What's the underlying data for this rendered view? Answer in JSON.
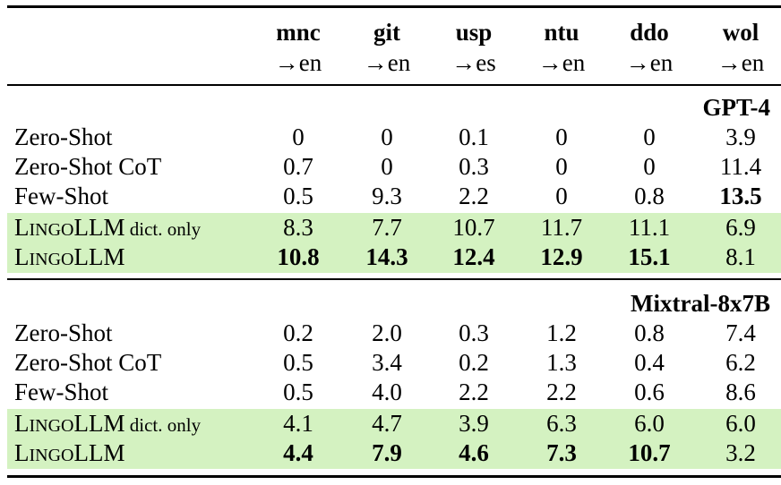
{
  "columns": [
    {
      "name": "mnc",
      "dir": "→en"
    },
    {
      "name": "git",
      "dir": "→en"
    },
    {
      "name": "usp",
      "dir": "→es"
    },
    {
      "name": "ntu",
      "dir": "→en"
    },
    {
      "name": "ddo",
      "dir": "→en"
    },
    {
      "name": "wol",
      "dir": "→en"
    }
  ],
  "sections": [
    {
      "model": "GPT-4",
      "rows": [
        {
          "label": "Zero-Shot",
          "values": [
            "0",
            "0",
            "0.1",
            "0",
            "0",
            "3.9"
          ]
        },
        {
          "label": "Zero-Shot CoT",
          "values": [
            "0.7",
            "0",
            "0.3",
            "0",
            "0",
            "11.4"
          ]
        },
        {
          "label": "Few-Shot",
          "values": [
            "0.5",
            "9.3",
            "2.2",
            "0",
            "0.8",
            "13.5"
          ]
        },
        {
          "label_sc_first": "L",
          "label_sc_rest": "INGO",
          "label_main": "LLM",
          "label_note": "dict. only",
          "values": [
            "8.3",
            "7.7",
            "10.7",
            "11.7",
            "11.1",
            "6.9"
          ]
        },
        {
          "label_sc_first": "L",
          "label_sc_rest": "INGO",
          "label_main": "LLM",
          "label_note": "",
          "values": [
            "10.8",
            "14.3",
            "12.4",
            "12.9",
            "15.1",
            "8.1"
          ]
        }
      ]
    },
    {
      "model": "Mixtral-8x7B",
      "rows": [
        {
          "label": "Zero-Shot",
          "values": [
            "0.2",
            "2.0",
            "0.3",
            "1.2",
            "0.8",
            "7.4"
          ]
        },
        {
          "label": "Zero-Shot CoT",
          "values": [
            "0.5",
            "3.4",
            "0.2",
            "1.3",
            "0.4",
            "6.2"
          ]
        },
        {
          "label": "Few-Shot",
          "values": [
            "0.5",
            "4.0",
            "2.2",
            "2.2",
            "0.6",
            "8.6"
          ]
        },
        {
          "label_sc_first": "L",
          "label_sc_rest": "INGO",
          "label_main": "LLM",
          "label_note": "dict. only",
          "values": [
            "4.1",
            "4.7",
            "3.9",
            "6.3",
            "6.0",
            "6.0"
          ]
        },
        {
          "label_sc_first": "L",
          "label_sc_rest": "INGO",
          "label_main": "LLM",
          "label_note": "",
          "values": [
            "4.4",
            "7.9",
            "4.6",
            "7.3",
            "10.7",
            "3.2"
          ]
        }
      ]
    }
  ],
  "bold_cells": [
    [
      2,
      5
    ],
    [
      4,
      0
    ],
    [
      4,
      1
    ],
    [
      4,
      2
    ],
    [
      4,
      3
    ],
    [
      4,
      4
    ],
    [
      9,
      0
    ],
    [
      9,
      1
    ],
    [
      9,
      2
    ],
    [
      9,
      3
    ],
    [
      9,
      4
    ]
  ],
  "colors": {
    "highlight": "#d4f2c1",
    "rule": "#000000"
  }
}
